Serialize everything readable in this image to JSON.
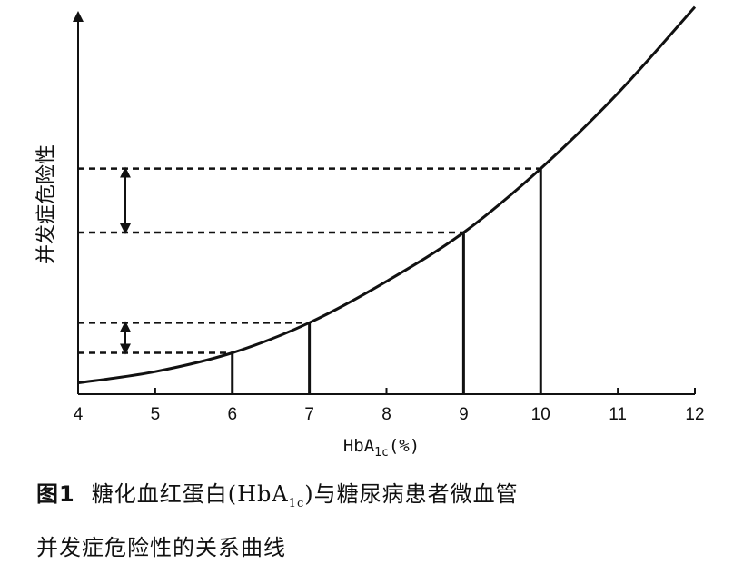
{
  "chart_data": {
    "type": "line",
    "xlabel": "HbA1c(%)",
    "xlabel_main": "HbA",
    "xlabel_sub": "1c",
    "xlabel_unit": "(%)",
    "ylabel": "并发症危险性",
    "xlim": [
      4,
      12
    ],
    "ylim": [
      0,
      100
    ],
    "x_ticks": [
      "4",
      "5",
      "6",
      "7",
      "8",
      "9",
      "10",
      "11",
      "12"
    ],
    "y_ticks": [],
    "grid": false,
    "legend": "none",
    "series": [
      {
        "x": [
          4,
          5,
          6,
          7,
          8,
          9,
          10,
          11,
          12
        ],
        "y": [
          3,
          6,
          11,
          19,
          30,
          43,
          60,
          80,
          103
        ]
      }
    ],
    "reference_x": [
      6,
      7,
      9,
      10
    ],
    "reference_y": [
      11,
      19,
      43,
      60
    ]
  },
  "caption": {
    "label": "图1",
    "line1_a": "糖化血红蛋白(HbA",
    "line1_sub": "1c",
    "line1_b": ")与糖尿病患者微血管",
    "line2": "并发症危险性的关系曲线"
  }
}
